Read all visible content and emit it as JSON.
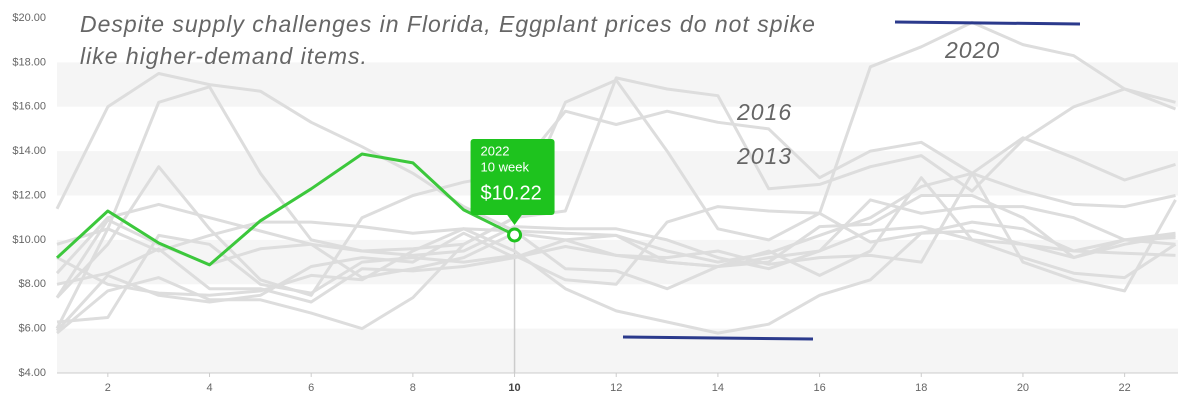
{
  "chart_data": {
    "type": "line",
    "title": "Despite supply challenges in Florida, Eggplant prices do not spike like higher-demand items.",
    "annotations": [
      "2020",
      "2016",
      "2013"
    ],
    "x": [
      1,
      2,
      3,
      4,
      5,
      6,
      7,
      8,
      9,
      10,
      11,
      12,
      13,
      14,
      15,
      16,
      17,
      18,
      19,
      20,
      21,
      22,
      23
    ],
    "xlim": [
      1,
      23.05
    ],
    "xticks": [
      2,
      4,
      6,
      8,
      10,
      12,
      14,
      16,
      18,
      20,
      22
    ],
    "ylim": [
      4,
      20
    ],
    "yticks": [
      {
        "value": 4,
        "label": "$4.00"
      },
      {
        "value": 6,
        "label": "$6.00"
      },
      {
        "value": 8,
        "label": "$8.00"
      },
      {
        "value": 10,
        "label": "$10.00"
      },
      {
        "value": 12,
        "label": "$12.00"
      },
      {
        "value": 14,
        "label": "$14.00"
      },
      {
        "value": 16,
        "label": "$16.00"
      },
      {
        "value": 18,
        "label": "$18.00"
      },
      {
        "value": 20,
        "label": "$20.00"
      }
    ],
    "alternate_bands": true,
    "tooltip": {
      "label": "10 week",
      "color": "#1ec31e"
    },
    "series": [
      {
        "color": "#dddddd",
        "values": [
          11.4,
          16,
          17.5,
          17,
          16.7,
          15.3,
          14.2,
          13,
          11.5,
          10.4,
          10.3,
          10.2,
          9.5,
          9,
          9.4,
          10.2,
          11,
          12.4,
          13,
          12.2,
          11.6,
          11.5,
          12
        ]
      },
      {
        "color": "#dddddd",
        "values": [
          6,
          10.5,
          16.2,
          16.9,
          13,
          10,
          9.5,
          9.6,
          9.8,
          11,
          16.2,
          17.2,
          14,
          10.5,
          10,
          11.2,
          17.8,
          18.7,
          19.8,
          18.8,
          18.3,
          16.8,
          15.9
        ]
      },
      {
        "color": "#dddddd",
        "values": [
          7.4,
          9.8,
          13.3,
          10.5,
          8.2,
          7.5,
          11,
          12,
          12.6,
          13,
          15.8,
          15.2,
          15.8,
          15.3,
          15,
          12.8,
          14,
          14.4,
          13,
          14.6,
          13.7,
          12.7,
          13.4
        ]
      },
      {
        "color": "#dddddd",
        "values": [
          8.5,
          11,
          11.6,
          11,
          10.4,
          9.8,
          9.5,
          9.3,
          9.5,
          10.6,
          10.5,
          10.5,
          10,
          9.2,
          8.7,
          9.5,
          11.8,
          11.2,
          11.5,
          11.5,
          11,
          10,
          10.1
        ]
      },
      {
        "color": "#dddddd",
        "values": [
          5.8,
          7.7,
          8.3,
          7.3,
          7.3,
          6.7,
          6,
          7.4,
          9.8,
          11,
          11.3,
          17.3,
          16.8,
          16.5,
          12.3,
          12.5,
          13.3,
          13.8,
          12.2,
          14.5,
          16,
          16.8,
          16.2
        ]
      },
      {
        "color": "#dddddd",
        "values": [
          9.8,
          10.5,
          9.5,
          10.2,
          10.8,
          10.8,
          10.6,
          10.3,
          10.5,
          10.4,
          8.7,
          8.6,
          7.8,
          8.8,
          9.5,
          8.4,
          9.5,
          12.8,
          10,
          9.8,
          9.2,
          9.8,
          10.2
        ]
      },
      {
        "color": "#dddddd",
        "values": [
          6.3,
          6.5,
          10.2,
          9.8,
          8,
          7.6,
          9,
          9.2,
          9,
          9.3,
          8.2,
          8,
          10.8,
          11.5,
          11.3,
          11.2,
          9.9,
          10.3,
          10.8,
          10.5,
          9.5,
          9.4,
          9.3
        ]
      },
      {
        "color": "#dddddd",
        "values": [
          8,
          8.5,
          9.6,
          7.8,
          7.8,
          7.2,
          8.7,
          8.6,
          8.8,
          9.2,
          10,
          10.2,
          9,
          8.8,
          9,
          10.6,
          10.7,
          12,
          12,
          11,
          9.2,
          10,
          10.3
        ]
      },
      {
        "color": "#dddddd",
        "values": [
          9.2,
          8,
          7.6,
          7.5,
          7.7,
          8.4,
          8.2,
          9.5,
          10.5,
          9.5,
          7.8,
          6.8,
          6.3,
          5.8,
          6.2,
          7.5,
          8.2,
          10.3,
          10.4,
          9.8,
          9.5,
          10,
          9.8
        ]
      },
      {
        "color": "#dddddd",
        "values": [
          5.9,
          8.4,
          7.5,
          7.2,
          7.5,
          8.8,
          9.2,
          9,
          10.3,
          9.2,
          9.7,
          9.3,
          9,
          8.8,
          9.2,
          9.5,
          10.4,
          10.6,
          10,
          9.2,
          8.5,
          8.3,
          9.8
        ]
      },
      {
        "color": "#dddddd",
        "values": [
          7.4,
          10.9,
          9.8,
          8.9,
          9.6,
          9.8,
          8.3,
          8.7,
          9.2,
          10.3,
          10,
          9.3,
          9.2,
          9.5,
          8.9,
          9.2,
          9.3,
          9,
          13,
          9,
          8.2,
          7.7,
          11.8
        ]
      },
      {
        "name": "2022",
        "color": "#3cc83c",
        "values": [
          9.19,
          11.3,
          9.86,
          8.87,
          10.86,
          12.3,
          13.87,
          13.47,
          11.35,
          10.22,
          null,
          null,
          null,
          null,
          null,
          null,
          null,
          null,
          null,
          null,
          null,
          null,
          null
        ],
        "value_labels": [
          null,
          null,
          null,
          null,
          null,
          null,
          null,
          null,
          null,
          "$10.22",
          null,
          null,
          null,
          null,
          null,
          null,
          null,
          null,
          null,
          null,
          null,
          null,
          null
        ]
      }
    ]
  }
}
